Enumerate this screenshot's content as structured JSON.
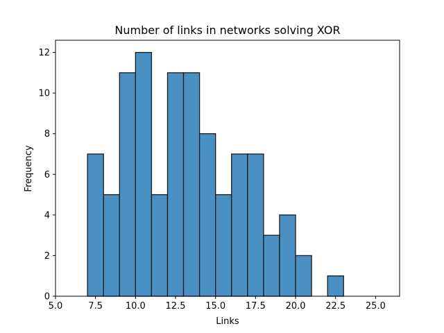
{
  "chart_data": {
    "type": "bar",
    "title": "Number of links in networks solving XOR",
    "xlabel": "Links",
    "ylabel": "Frequency",
    "xlim": [
      5.0,
      26.5
    ],
    "ylim": [
      0,
      12.6
    ],
    "xticks": [
      5.0,
      7.5,
      10.0,
      12.5,
      15.0,
      17.5,
      20.0,
      22.5,
      25.0
    ],
    "xtick_labels": [
      "5.0",
      "7.5",
      "10.0",
      "12.5",
      "15.0",
      "17.5",
      "20.0",
      "22.5",
      "25.0"
    ],
    "yticks": [
      0,
      2,
      4,
      6,
      8,
      10,
      12
    ],
    "ytick_labels": [
      "0",
      "2",
      "4",
      "6",
      "8",
      "10",
      "12"
    ],
    "bin_width": 1,
    "bins": [
      {
        "start": 5,
        "count": 0
      },
      {
        "start": 6,
        "count": 0
      },
      {
        "start": 7,
        "count": 7
      },
      {
        "start": 8,
        "count": 5
      },
      {
        "start": 9,
        "count": 11
      },
      {
        "start": 10,
        "count": 12
      },
      {
        "start": 11,
        "count": 5
      },
      {
        "start": 12,
        "count": 11
      },
      {
        "start": 13,
        "count": 11
      },
      {
        "start": 14,
        "count": 8
      },
      {
        "start": 15,
        "count": 5
      },
      {
        "start": 16,
        "count": 7
      },
      {
        "start": 17,
        "count": 7
      },
      {
        "start": 18,
        "count": 3
      },
      {
        "start": 19,
        "count": 4
      },
      {
        "start": 20,
        "count": 2
      },
      {
        "start": 21,
        "count": 0
      },
      {
        "start": 22,
        "count": 1
      },
      {
        "start": 23,
        "count": 0
      },
      {
        "start": 24,
        "count": 0
      },
      {
        "start": 25,
        "count": 0
      }
    ],
    "bar_color": "#4a90c2",
    "edge_color": "#1a1a1a"
  }
}
